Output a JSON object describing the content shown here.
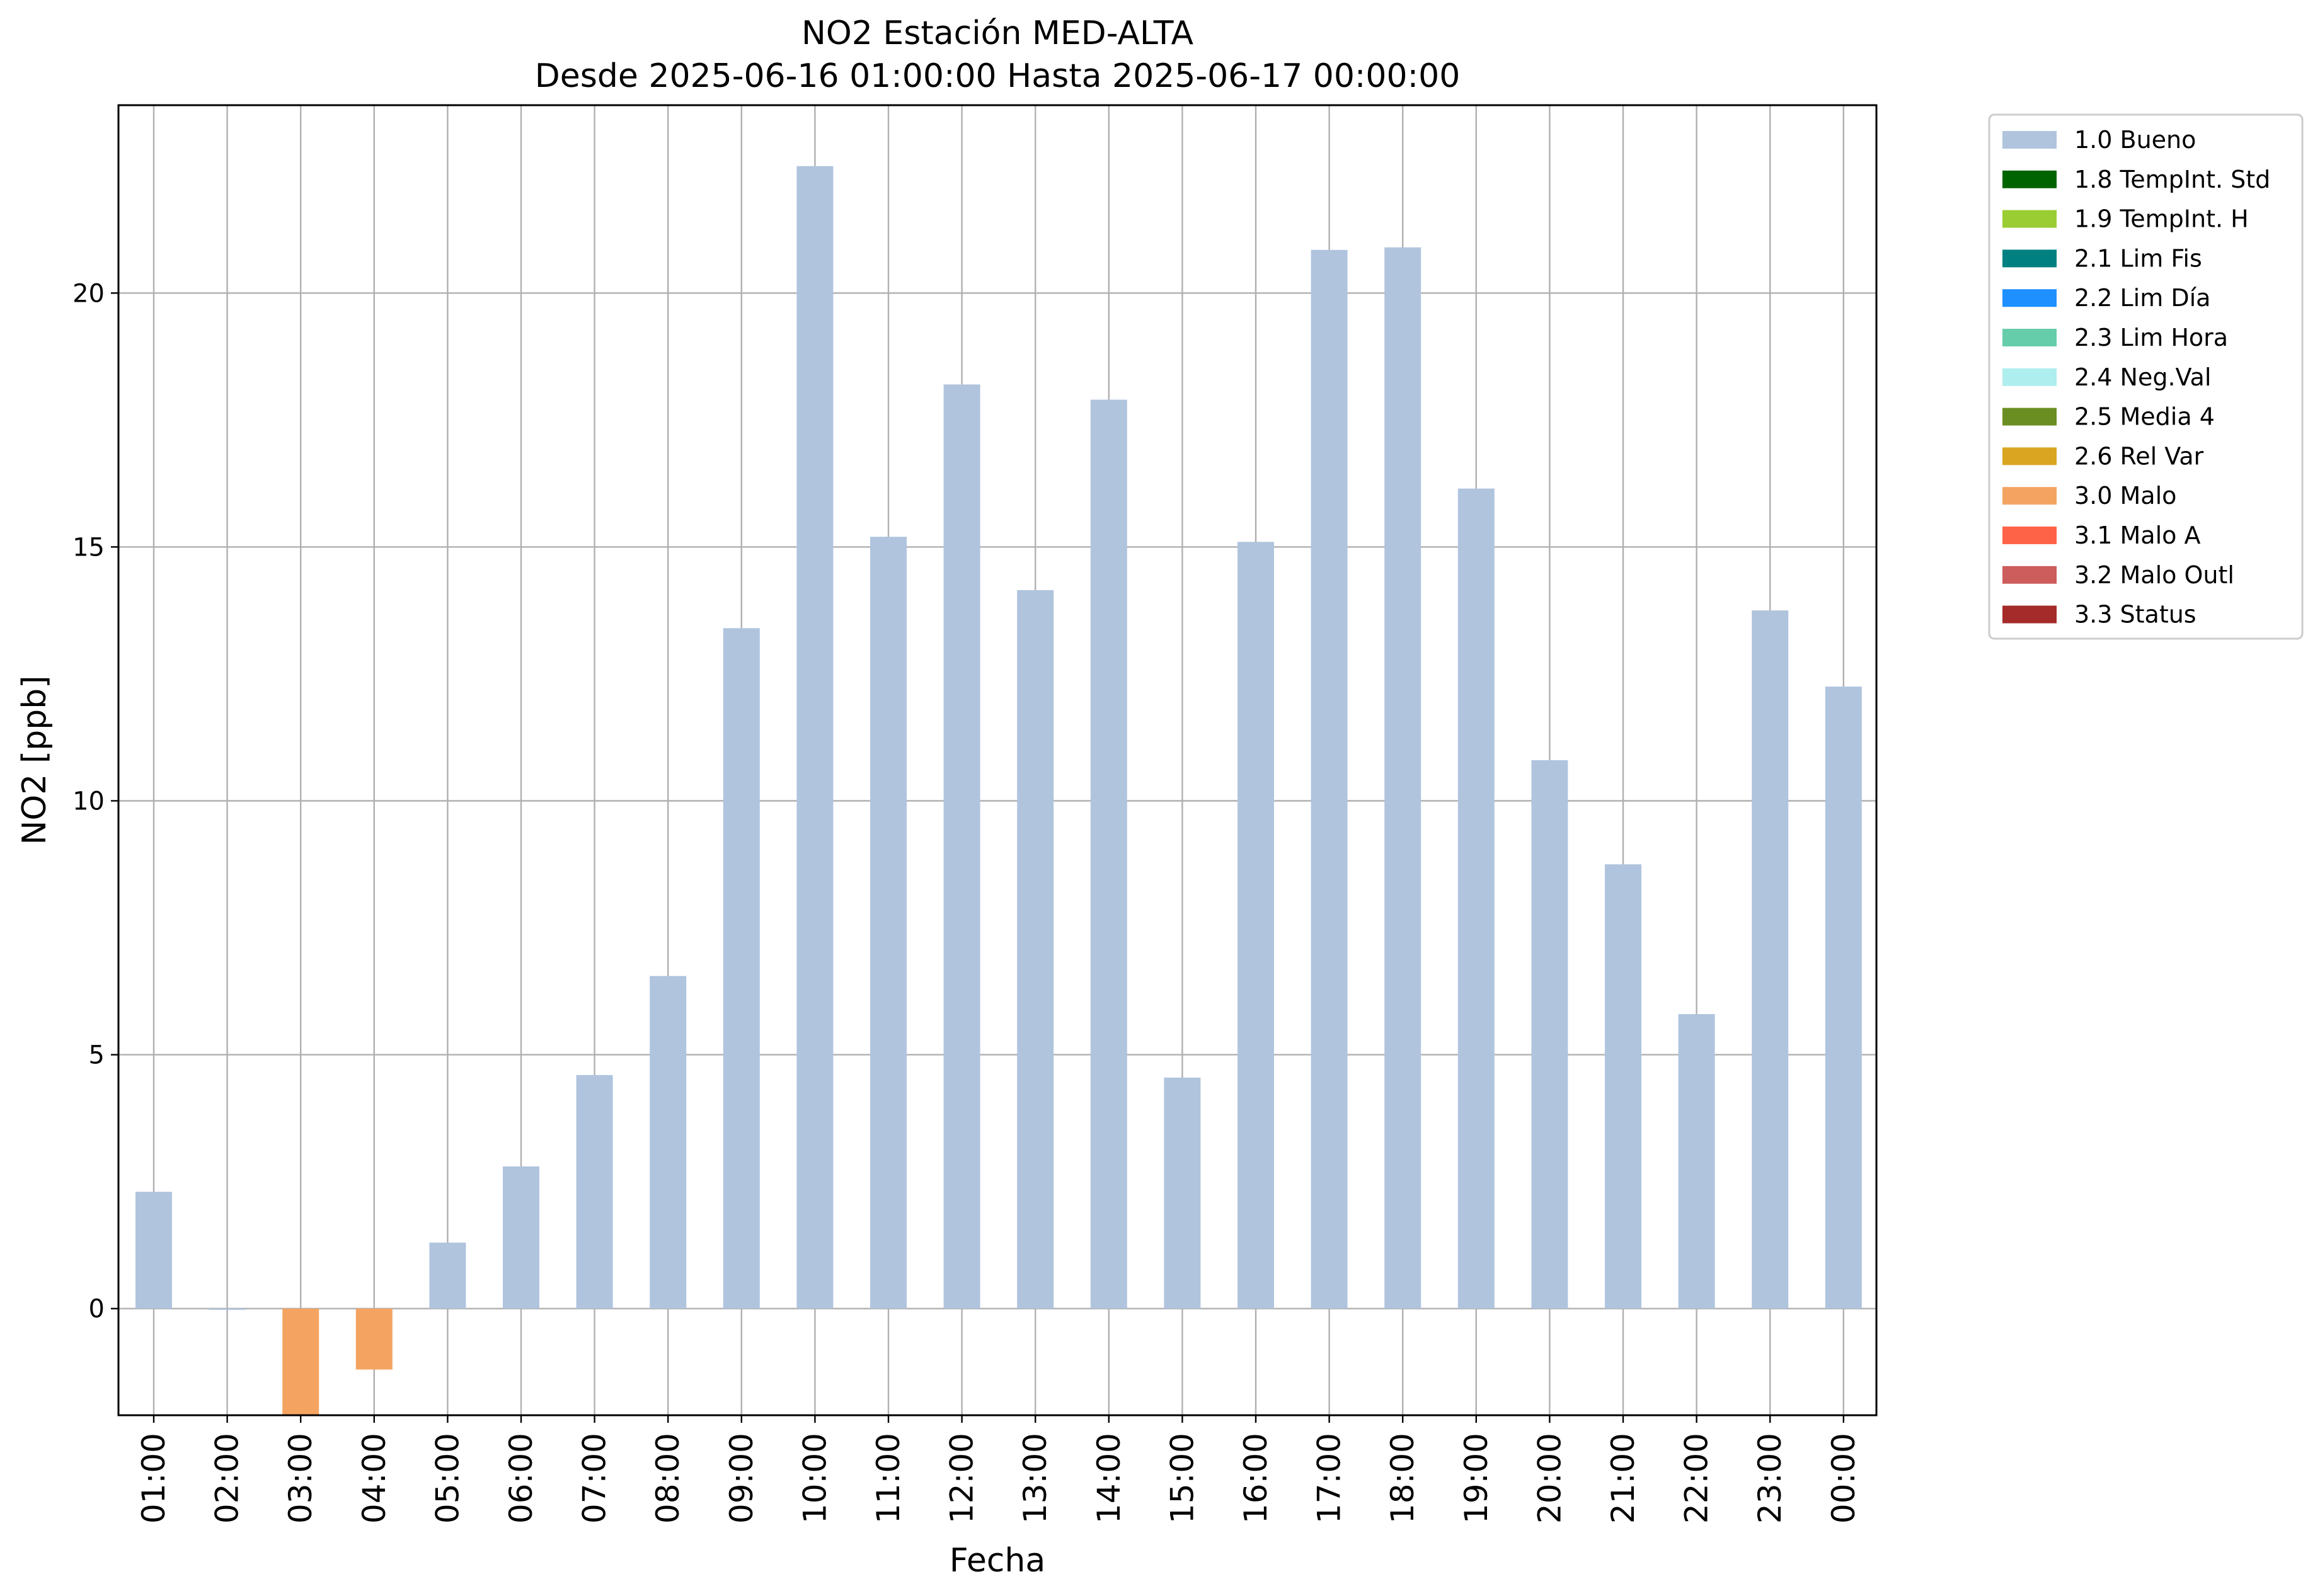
{
  "chart_data": {
    "type": "bar",
    "title": "NO2 Estación MED-ALTA",
    "subtitle": "Desde 2025-06-16 01:00:00 Hasta 2025-06-17 00:00:00",
    "xlabel": "Fecha",
    "ylabel": "NO2 [ppb]",
    "ylim": [
      -2.1,
      23.7
    ],
    "yticks": [
      0,
      5,
      10,
      15,
      20
    ],
    "grid": true,
    "legend_position": "outside-top-right",
    "categories": [
      "01:00",
      "02:00",
      "03:00",
      "04:00",
      "05:00",
      "06:00",
      "07:00",
      "08:00",
      "09:00",
      "10:00",
      "11:00",
      "12:00",
      "13:00",
      "14:00",
      "15:00",
      "16:00",
      "17:00",
      "18:00",
      "19:00",
      "20:00",
      "21:00",
      "22:00",
      "23:00",
      "00:00"
    ],
    "values": [
      2.3,
      0.0,
      -2.2,
      -1.2,
      1.3,
      2.8,
      4.6,
      6.55,
      13.4,
      22.5,
      15.2,
      18.2,
      14.15,
      17.9,
      4.55,
      15.1,
      20.85,
      20.9,
      16.15,
      10.8,
      8.75,
      5.8,
      13.75,
      12.25
    ],
    "flags": [
      "1.0 Bueno",
      "1.0 Bueno",
      "3.0 Malo",
      "3.0 Malo",
      "1.0 Bueno",
      "1.0 Bueno",
      "1.0 Bueno",
      "1.0 Bueno",
      "1.0 Bueno",
      "1.0 Bueno",
      "1.0 Bueno",
      "1.0 Bueno",
      "1.0 Bueno",
      "1.0 Bueno",
      "1.0 Bueno",
      "1.0 Bueno",
      "1.0 Bueno",
      "1.0 Bueno",
      "1.0 Bueno",
      "1.0 Bueno",
      "1.0 Bueno",
      "1.0 Bueno",
      "1.0 Bueno",
      "1.0 Bueno"
    ],
    "legend": [
      {
        "label": "1.0 Bueno",
        "color": "#b0c4de"
      },
      {
        "label": "1.8 TempInt. Std",
        "color": "#006400"
      },
      {
        "label": "1.9 TempInt. H",
        "color": "#9acd32"
      },
      {
        "label": "2.1 Lim Fis",
        "color": "#008080"
      },
      {
        "label": "2.2 Lim Día",
        "color": "#1e90ff"
      },
      {
        "label": "2.3 Lim Hora",
        "color": "#66cdaa"
      },
      {
        "label": "2.4 Neg.Val",
        "color": "#afeeee"
      },
      {
        "label": "2.5 Media 4",
        "color": "#6b8e23"
      },
      {
        "label": "2.6 Rel Var",
        "color": "#daa520"
      },
      {
        "label": "3.0 Malo",
        "color": "#f4a460"
      },
      {
        "label": "3.1 Malo A",
        "color": "#ff6347"
      },
      {
        "label": "3.2 Malo Outl",
        "color": "#cd5c5c"
      },
      {
        "label": "3.3 Status",
        "color": "#a52a2a"
      }
    ]
  }
}
